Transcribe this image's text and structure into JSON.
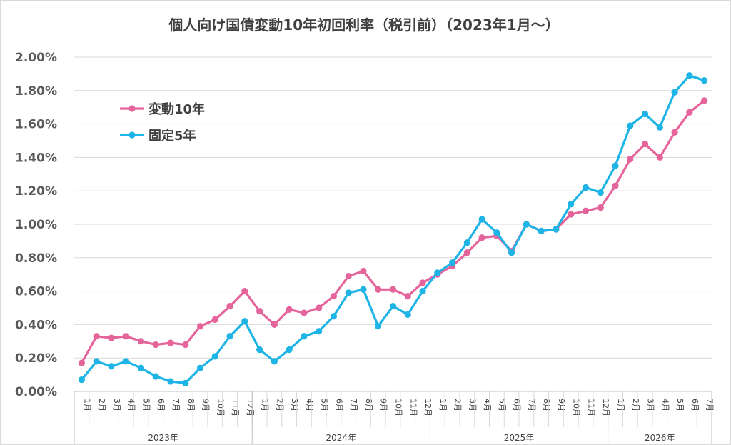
{
  "chart_data": {
    "type": "line",
    "title": "個人向け国債変動10年初回利率（税引前）（2023年1月～）",
    "ylim": [
      0,
      2.0
    ],
    "yticks": [
      "0.00%",
      "0.20%",
      "0.40%",
      "0.60%",
      "0.80%",
      "1.00%",
      "1.20%",
      "1.40%",
      "1.60%",
      "1.80%",
      "2.00%"
    ],
    "grid": true,
    "legend_position": "top-left",
    "categories": [
      "1月",
      "2月",
      "3月",
      "4月",
      "5月",
      "6月",
      "7月",
      "8月",
      "9月",
      "10月",
      "11月",
      "12月",
      "1月",
      "2月",
      "3月",
      "4月",
      "5月",
      "6月",
      "7月",
      "8月",
      "9月",
      "10月",
      "11月",
      "12月",
      "1月",
      "2月",
      "3月",
      "4月",
      "5月",
      "6月",
      "7月",
      "8月",
      "9月",
      "10月",
      "11月",
      "12月",
      "1月",
      "2月",
      "3月",
      "4月",
      "5月",
      "6月",
      "7月"
    ],
    "year_groups": [
      {
        "label": "2023年",
        "count": 12
      },
      {
        "label": "2024年",
        "count": 12
      },
      {
        "label": "2025年",
        "count": 12
      },
      {
        "label": "2026年",
        "count": 7
      }
    ],
    "series": [
      {
        "name": "変動10年",
        "color": "#e6649c",
        "values": [
          0.17,
          0.33,
          0.32,
          0.33,
          0.3,
          0.28,
          0.29,
          0.28,
          0.39,
          0.43,
          0.51,
          0.6,
          0.48,
          0.4,
          0.49,
          0.47,
          0.5,
          0.57,
          0.69,
          0.72,
          0.61,
          0.61,
          0.57,
          0.65,
          0.7,
          0.75,
          0.83,
          0.92,
          0.93,
          0.84,
          1.0,
          0.96,
          0.97,
          1.06,
          1.08,
          1.1,
          1.23,
          1.39,
          1.48,
          1.4,
          1.55,
          1.67,
          1.74
        ]
      },
      {
        "name": "固定5年",
        "color": "#1eb4e6",
        "values": [
          0.07,
          0.18,
          0.15,
          0.18,
          0.14,
          0.09,
          0.06,
          0.05,
          0.14,
          0.21,
          0.33,
          0.42,
          0.25,
          0.18,
          0.25,
          0.33,
          0.36,
          0.45,
          0.59,
          0.61,
          0.39,
          0.51,
          0.46,
          0.6,
          0.71,
          0.77,
          0.89,
          1.03,
          0.95,
          0.83,
          1.0,
          0.96,
          0.97,
          1.12,
          1.22,
          1.19,
          1.35,
          1.59,
          1.66,
          1.58,
          1.79,
          1.89,
          1.86
        ]
      }
    ]
  }
}
